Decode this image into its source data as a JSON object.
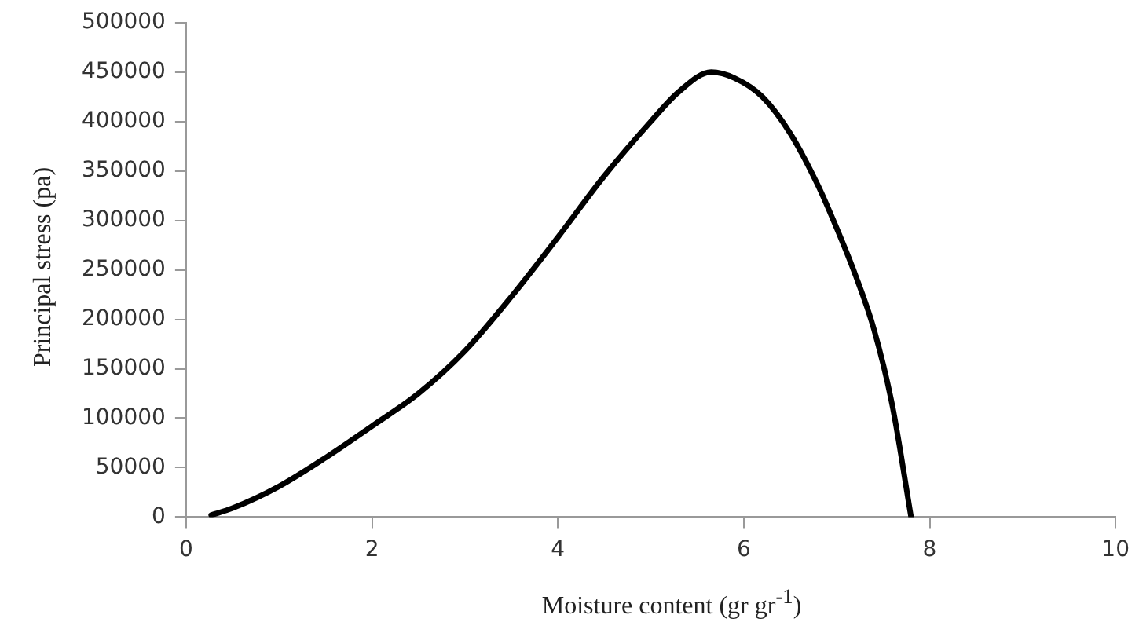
{
  "chart_data": {
    "type": "line",
    "xlabel": "Moisture content (gr gr$^{-1}$)",
    "ylabel": "Principal stress (pa)",
    "series": [
      {
        "color": "#000000",
        "x": [
          0.27,
          0.5,
          1,
          1.5,
          2,
          2.5,
          3,
          3.5,
          4,
          4.5,
          5,
          5.3,
          5.65,
          5.9,
          6.2,
          6.5,
          6.8,
          7,
          7.2,
          7.4,
          7.6,
          7.8
        ],
        "values": [
          2000,
          9000,
          31000,
          60000,
          92000,
          125000,
          168000,
          223000,
          283000,
          345000,
          400000,
          430000,
          450000,
          444000,
          425000,
          388000,
          335000,
          292000,
          245000,
          190000,
          112000,
          0
        ]
      }
    ],
    "xlim": [
      0,
      10
    ],
    "xticks": [
      0,
      2,
      4,
      6,
      8,
      10
    ],
    "ylim": [
      0,
      500000
    ],
    "yticks": [
      0,
      50000,
      100000,
      150000,
      200000,
      250000,
      300000,
      350000,
      400000,
      450000,
      500000
    ],
    "grid": false,
    "legend": false,
    "marker": "none",
    "line_style": "solid"
  }
}
